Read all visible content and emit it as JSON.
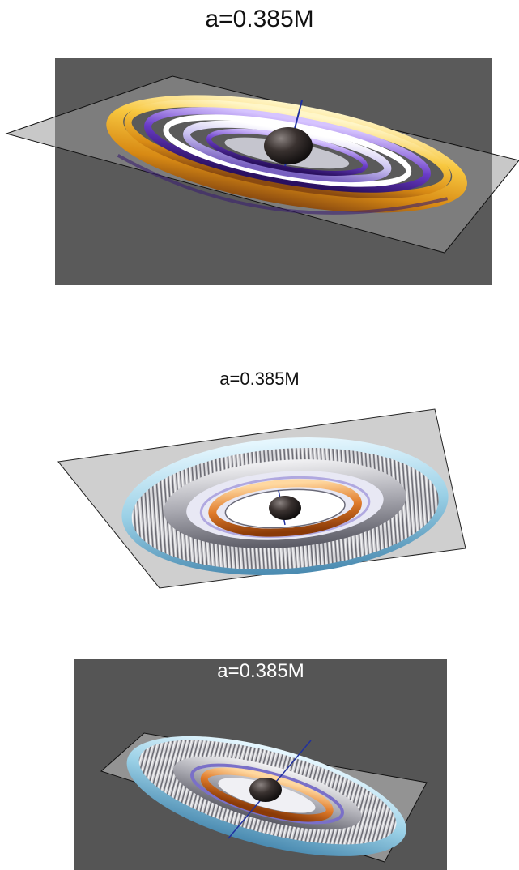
{
  "panels": [
    {
      "title": "a=0.385M",
      "background": "#5a5a5a",
      "outer_torus_color": "#f5b82e",
      "inner_ring_color": "#6a3cc8",
      "black_hole_color": "#3a3230"
    },
    {
      "title": "a=0.385M",
      "background": "#ffffff",
      "outer_torus_color": "#9ad0e6",
      "inner_ring_color": "#e07b2a",
      "black_hole_color": "#2e2a2a"
    },
    {
      "title": "a=0.385M",
      "background": "#555555",
      "outer_torus_color": "#9ad0e6",
      "inner_ring_color": "#e07b2a",
      "black_hole_color": "#2e2a2a"
    }
  ]
}
